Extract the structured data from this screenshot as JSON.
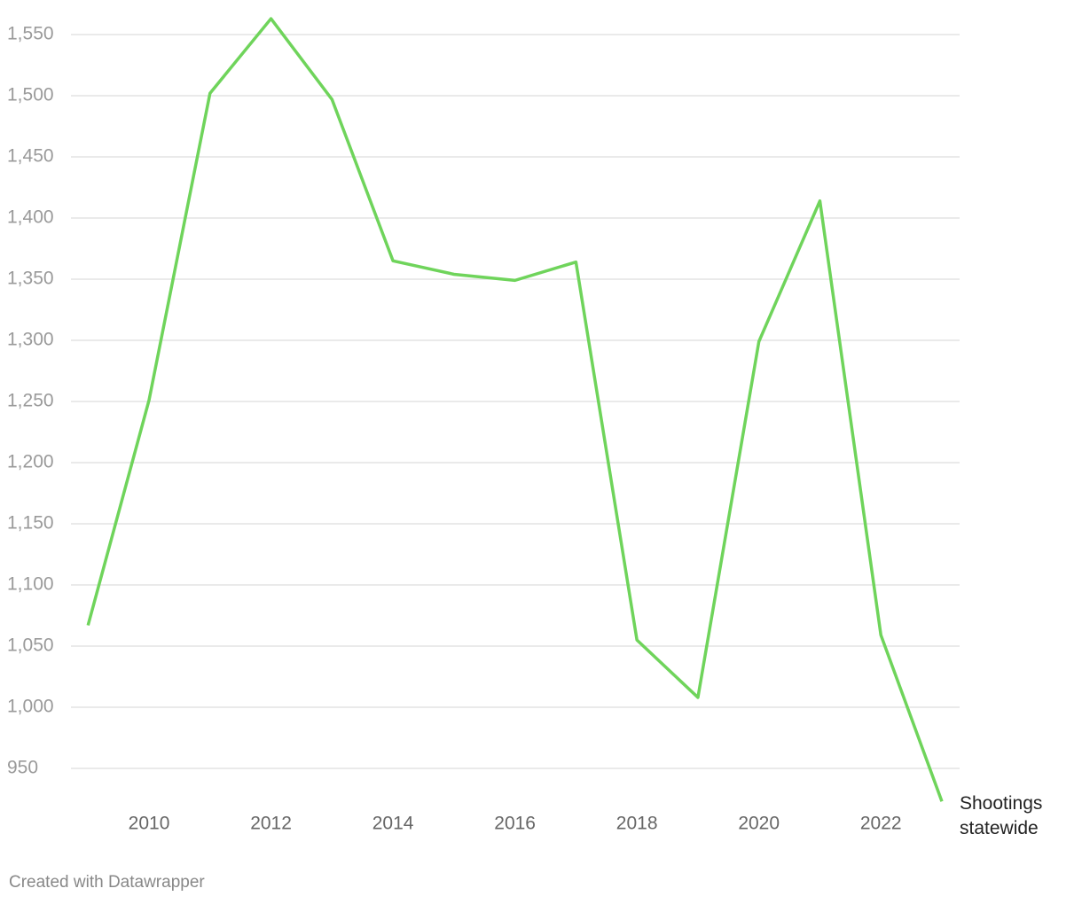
{
  "chart_data": {
    "type": "line",
    "x": [
      2009,
      2010,
      2011,
      2012,
      2013,
      2014,
      2015,
      2016,
      2017,
      2018,
      2019,
      2020,
      2021,
      2022,
      2023
    ],
    "series": [
      {
        "name": "Shootings statewide",
        "color": "#6fd45b",
        "values": [
          1067,
          1251,
          1502,
          1563,
          1497,
          1365,
          1354,
          1349,
          1364,
          1055,
          1008,
          1299,
          1414,
          1059,
          923
        ]
      }
    ],
    "xlim": [
      2009,
      2023
    ],
    "xticks": [
      2010,
      2012,
      2014,
      2016,
      2018,
      2020,
      2022
    ],
    "ylim": [
      920,
      1565
    ],
    "yticks": [
      950,
      {
        "value": 1000,
        "label": "1,000"
      },
      {
        "value": 1050,
        "label": "1,050"
      },
      {
        "value": 1100,
        "label": "1,100"
      },
      {
        "value": 1150,
        "label": "1,150"
      },
      {
        "value": 1200,
        "label": "1,200"
      },
      {
        "value": 1250,
        "label": "1,250"
      },
      {
        "value": 1300,
        "label": "1,300"
      },
      {
        "value": 1350,
        "label": "1,350"
      },
      {
        "value": 1400,
        "label": "1,400"
      },
      {
        "value": 1450,
        "label": "1,450"
      },
      {
        "value": 1500,
        "label": "1,500"
      },
      {
        "value": 1550,
        "label": "1,550"
      }
    ],
    "grid": true,
    "footer": "Created with Datawrapper"
  }
}
